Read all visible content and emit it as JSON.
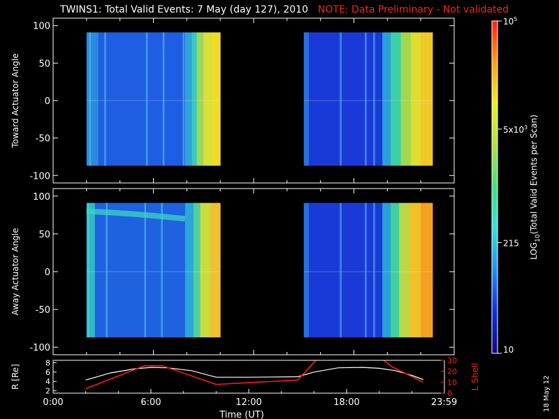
{
  "header": {
    "title": "TWINS1: Total Valid Events:  7 May (day 127), 2010",
    "note": "NOTE: Data Preliminary - Not validated"
  },
  "footer": {
    "stamp": "18 May 12"
  },
  "chart_data": [
    {
      "type": "heatmap",
      "ylabel": "Toward Actuator Angle",
      "ylim": [
        -110,
        110
      ],
      "yticks": [
        100,
        50,
        0,
        -50,
        -100
      ],
      "ytick_labels": [
        "100",
        "50",
        "0",
        "-50",
        "-100"
      ],
      "xlim_hours": [
        0,
        24
      ],
      "segments": [
        {
          "start_hour": 2.0,
          "end_hour": 10.0,
          "angle_range": [
            -87,
            91
          ],
          "bands": [
            {
              "start_hour": 2.0,
              "end_hour": 2.7,
              "color": "#2a8ae0"
            },
            {
              "start_hour": 2.7,
              "end_hour": 7.9,
              "color": "#1f5ee3"
            },
            {
              "start_hour": 7.9,
              "end_hour": 8.3,
              "color": "#2fa4d8"
            },
            {
              "start_hour": 8.3,
              "end_hour": 8.6,
              "color": "#3cc8c0"
            },
            {
              "start_hour": 8.6,
              "end_hour": 9.0,
              "color": "#9ed85a"
            },
            {
              "start_hour": 9.0,
              "end_hour": 9.5,
              "color": "#d8e03a"
            },
            {
              "start_hour": 9.5,
              "end_hour": 10.0,
              "color": "#f0dc28"
            }
          ],
          "streaks": [
            2.2,
            3.1,
            5.6,
            6.6,
            7.8
          ]
        },
        {
          "start_hour": 15.0,
          "end_hour": 22.7,
          "angle_range": [
            -87,
            91
          ],
          "bands": [
            {
              "start_hour": 15.0,
              "end_hour": 15.3,
              "color": "#2a70e0"
            },
            {
              "start_hour": 15.3,
              "end_hour": 19.7,
              "color": "#1a3ad8"
            },
            {
              "start_hour": 19.7,
              "end_hour": 20.2,
              "color": "#2aa0d8"
            },
            {
              "start_hour": 20.2,
              "end_hour": 20.8,
              "color": "#3ad0a8"
            },
            {
              "start_hour": 20.8,
              "end_hour": 21.4,
              "color": "#a0d850"
            },
            {
              "start_hour": 21.4,
              "end_hour": 22.0,
              "color": "#e0dc30"
            },
            {
              "start_hour": 22.0,
              "end_hour": 22.7,
              "color": "#f2c828"
            }
          ],
          "streaks": [
            17.2,
            18.7,
            19.2
          ]
        }
      ]
    },
    {
      "type": "heatmap",
      "ylabel": "Away Actuator Angle",
      "ylim": [
        -110,
        110
      ],
      "yticks": [
        100,
        50,
        0,
        -50,
        -100
      ],
      "ytick_labels": [
        "100",
        "50",
        "0",
        "-50",
        "-100"
      ],
      "xlim_hours": [
        0,
        24
      ],
      "segments": [
        {
          "start_hour": 2.0,
          "end_hour": 10.0,
          "angle_range": [
            -87,
            91
          ],
          "bands": [
            {
              "start_hour": 2.0,
              "end_hour": 2.5,
              "color": "#30b8c8"
            },
            {
              "start_hour": 2.5,
              "end_hour": 7.9,
              "color": "#1f62e0"
            },
            {
              "start_hour": 7.9,
              "end_hour": 8.4,
              "color": "#2aa8d8"
            },
            {
              "start_hour": 8.4,
              "end_hour": 8.8,
              "color": "#50d0a0"
            },
            {
              "start_hour": 8.8,
              "end_hour": 9.4,
              "color": "#c8dc40"
            },
            {
              "start_hour": 9.4,
              "end_hour": 10.0,
              "color": "#f0c030"
            }
          ],
          "streaks": [
            2.1,
            3.2,
            5.5,
            6.5
          ],
          "arc": {
            "angle_start": 80,
            "angle_end": 70,
            "end_hour": 7.9,
            "color": "#3ad8c0"
          }
        },
        {
          "start_hour": 15.0,
          "end_hour": 22.7,
          "angle_range": [
            -87,
            91
          ],
          "bands": [
            {
              "start_hour": 15.0,
              "end_hour": 15.3,
              "color": "#2a70e0"
            },
            {
              "start_hour": 15.3,
              "end_hour": 19.7,
              "color": "#1a3ad8"
            },
            {
              "start_hour": 19.7,
              "end_hour": 20.2,
              "color": "#2aa0d8"
            },
            {
              "start_hour": 20.2,
              "end_hour": 20.7,
              "color": "#40d0a0"
            },
            {
              "start_hour": 20.7,
              "end_hour": 21.3,
              "color": "#b8d848"
            },
            {
              "start_hour": 21.3,
              "end_hour": 22.0,
              "color": "#f0c028"
            },
            {
              "start_hour": 22.0,
              "end_hour": 22.7,
              "color": "#f5a020"
            }
          ],
          "streaks": [
            17.2,
            18.7,
            19.2
          ]
        }
      ]
    },
    {
      "type": "line",
      "ylabel": "R [Re]",
      "ylabel2": "L Shell",
      "xlabel": "Time (UT)",
      "xlim_hours": [
        0,
        24
      ],
      "xticks_hours": [
        0,
        6,
        12,
        18,
        23.983
      ],
      "xtick_labels": [
        "0:00",
        "6:00",
        "12:00",
        "18:00",
        "23:59"
      ],
      "ylim": [
        1.5,
        8.5
      ],
      "yticks": [
        2,
        4,
        6,
        8
      ],
      "ytick_labels": [
        "2",
        "4",
        "6",
        "8"
      ],
      "ylim2": [
        0,
        30
      ],
      "yticks2": [
        0,
        10,
        20,
        30
      ],
      "ytick_labels2": [
        "0",
        "10",
        "20",
        "30"
      ],
      "series": [
        {
          "axis": "left",
          "color": "#ffffff",
          "x": [
            2.0,
            3.5,
            5.0,
            6.0,
            7.0,
            8.5,
            10.0,
            12.0,
            15.0,
            16.0,
            17.5,
            19.0,
            20.0,
            21.0,
            22.0,
            22.7
          ],
          "y": [
            4.3,
            5.8,
            6.7,
            7.0,
            6.9,
            6.3,
            4.9,
            4.9,
            5.0,
            6.0,
            6.9,
            7.0,
            6.8,
            6.3,
            5.3,
            4.4
          ]
        },
        {
          "axis": "right",
          "color": "#ff1a1a",
          "x": [
            2.0,
            5.6,
            6.7,
            10.0,
            15.0,
            15.5,
            16.1,
            16.5
          ],
          "y": [
            4,
            25,
            25,
            8,
            12,
            20,
            30,
            35
          ]
        },
        {
          "axis": "right",
          "color": "#ff1a1a",
          "x": [
            20.1,
            20.8,
            22.7
          ],
          "y": [
            32,
            24,
            10
          ]
        }
      ]
    },
    {
      "type": "heatmap",
      "ylabel": "LOG10(Total Valid Events per Scan)",
      "colorbar_ticks": [
        10,
        215,
        5000,
        100000
      ],
      "colorbar_labels": [
        "10",
        "215",
        "5x10^3",
        "10^5"
      ],
      "colorbar_range": [
        10,
        100000
      ],
      "colors": [
        "#0a0a80",
        "#1030e0",
        "#1e90f0",
        "#30e0e0",
        "#40e080",
        "#b0e040",
        "#f0f020",
        "#ffa010",
        "#ff2010"
      ]
    }
  ]
}
